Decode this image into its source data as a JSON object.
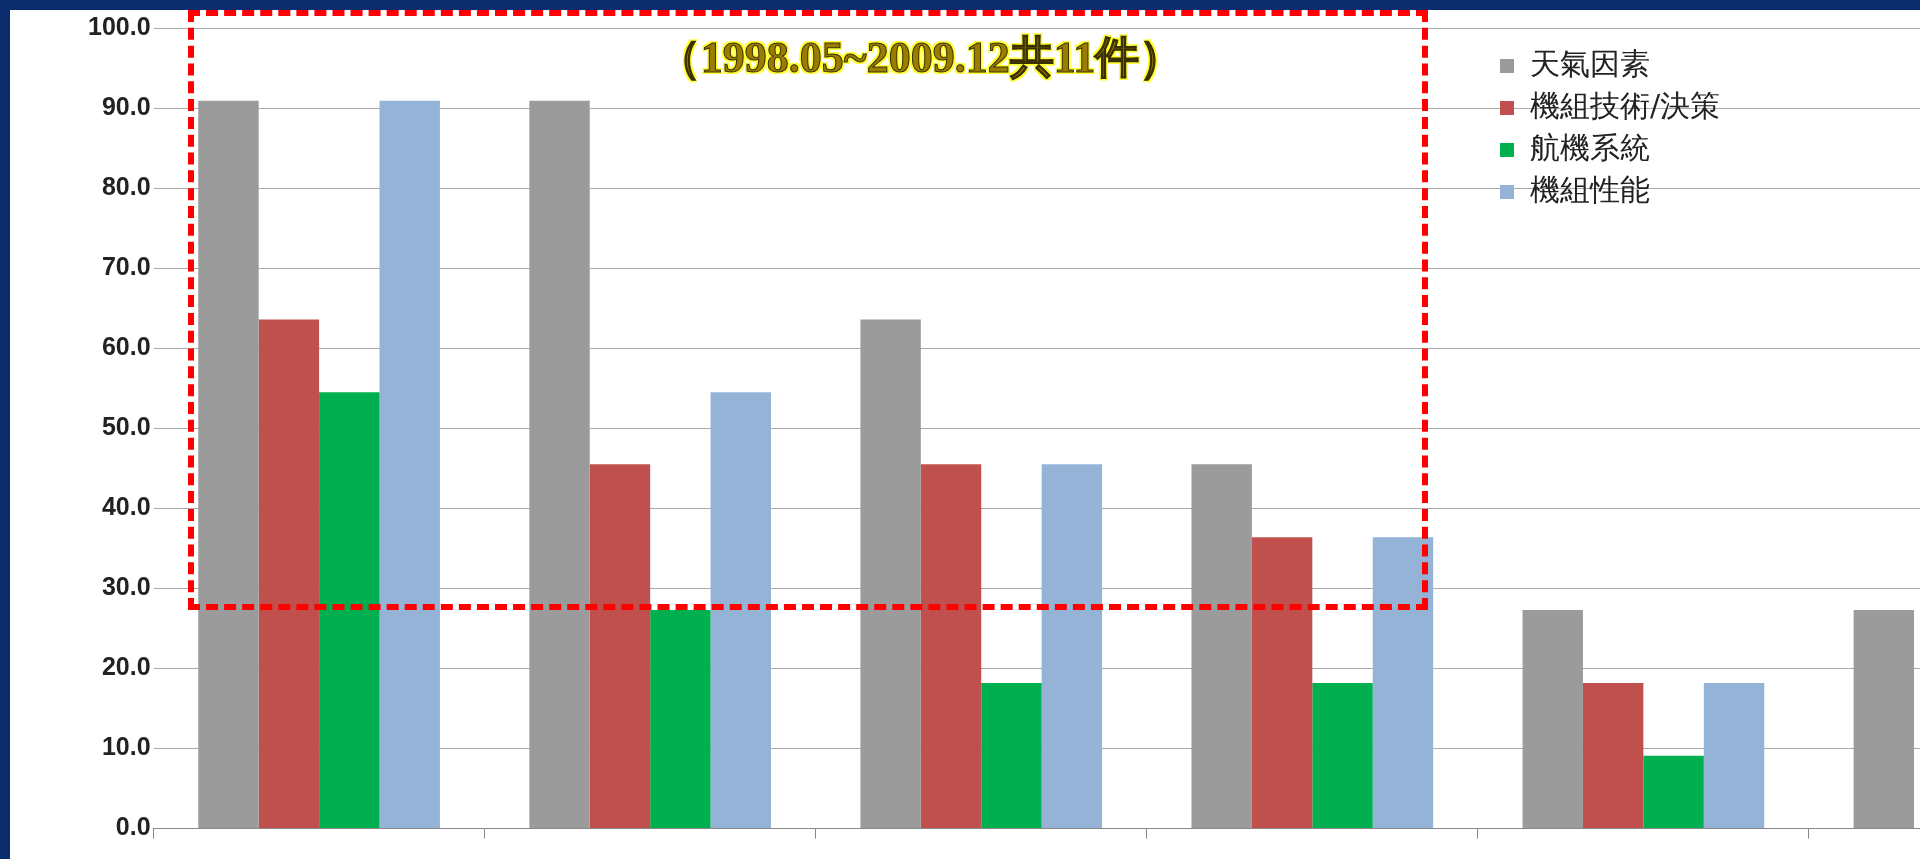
{
  "chart_data": {
    "type": "bar",
    "categories": [
      null,
      null,
      null,
      null,
      null,
      null
    ],
    "series": [
      {
        "name": "天氣因素",
        "color": "#9b9b9b",
        "values": [
          90.9,
          90.9,
          63.6,
          45.5,
          27.3,
          27.3
        ]
      },
      {
        "name": "機組技術/決策",
        "color": "#c0504d",
        "values": [
          63.6,
          45.5,
          45.5,
          36.4,
          18.2,
          null
        ]
      },
      {
        "name": "航機系統",
        "color": "#00b050",
        "values": [
          54.5,
          27.3,
          18.2,
          18.2,
          9.1,
          null
        ]
      },
      {
        "name": "機組性能",
        "color": "#95b3d7",
        "values": [
          90.9,
          54.5,
          45.5,
          36.4,
          18.2,
          null
        ]
      }
    ],
    "ylim": [
      0,
      100
    ],
    "yticks": [
      {
        "value": 0,
        "label": "0.0"
      },
      {
        "value": 10,
        "label": "10.0"
      },
      {
        "value": 20,
        "label": "20.0"
      },
      {
        "value": 30,
        "label": "30.0"
      },
      {
        "value": 40,
        "label": "40.0"
      },
      {
        "value": 50,
        "label": "50.0"
      },
      {
        "value": 60,
        "label": "60.0"
      },
      {
        "value": 70,
        "label": "70.0"
      },
      {
        "value": 80,
        "label": "80.0"
      },
      {
        "value": 90,
        "label": "90.0"
      },
      {
        "value": 100,
        "label": "100.0"
      }
    ],
    "grid": "y",
    "legend": "top right",
    "annotations": [
      "（1998.05~2009.12共11件）"
    ]
  }
}
